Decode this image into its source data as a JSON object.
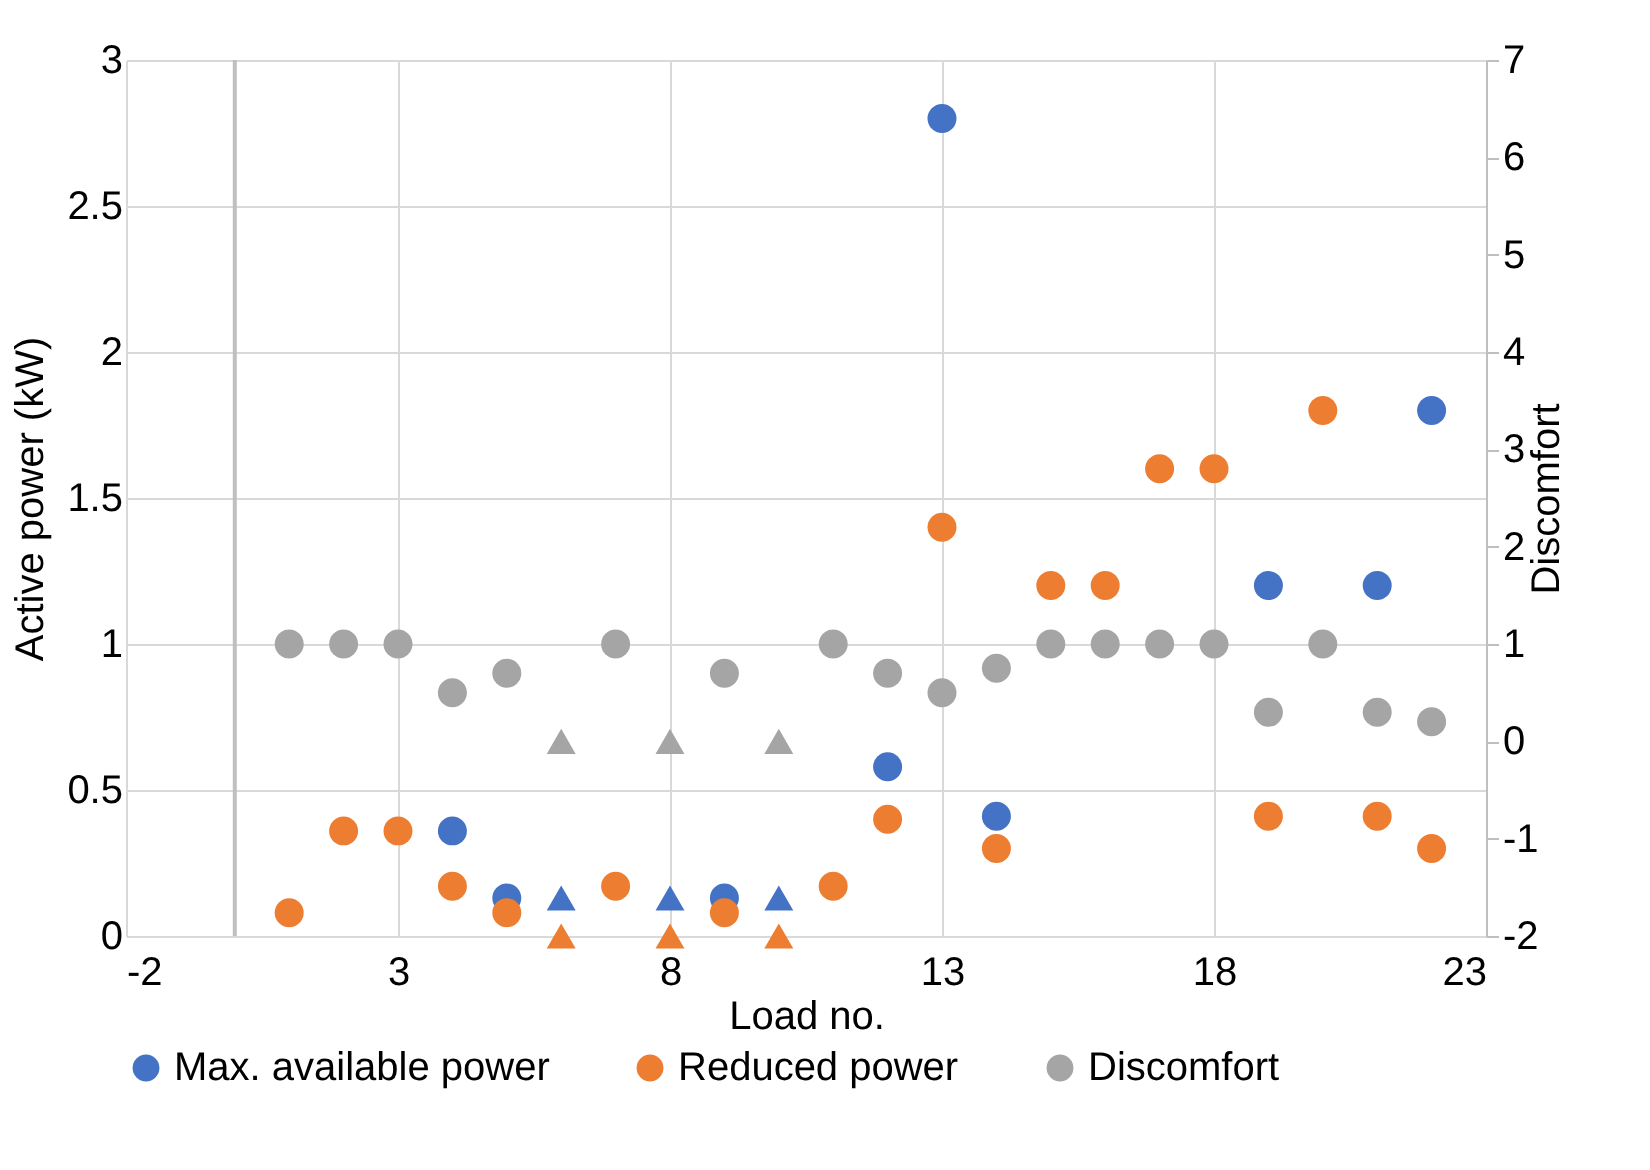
{
  "chart_data": {
    "type": "scatter",
    "xlabel": "Load no.",
    "ylabel": "Active  power (kW)",
    "y2label": "Discomfort",
    "xlim": [
      -2,
      23
    ],
    "xticks": [
      -2,
      3,
      8,
      13,
      18,
      23
    ],
    "ylim": [
      0,
      3
    ],
    "yticks": [
      0,
      0.5,
      1,
      1.5,
      2,
      2.5,
      3
    ],
    "y2lim": [
      -2,
      7
    ],
    "y2ticks": [
      -2,
      -1,
      0,
      1,
      2,
      3,
      4,
      5,
      6,
      7
    ],
    "grid": true,
    "legend": "bottom",
    "ref_lines": [
      {
        "axis": "x",
        "value": 0,
        "color": "#bfbfbf"
      }
    ],
    "series": [
      {
        "name": "Max. available power",
        "color": "#4472c4",
        "marker": "circle",
        "x": [
          4,
          5,
          9,
          12,
          13,
          14,
          19,
          21,
          22
        ],
        "values": [
          0.36,
          0.13,
          0.13,
          0.58,
          2.8,
          0.41,
          1.2,
          1.2,
          1.8
        ]
      },
      {
        "name": "Reduced power",
        "color": "#ed7d31",
        "marker": "circle",
        "x": [
          1,
          2,
          3,
          4,
          5,
          7,
          9,
          11,
          12,
          13,
          14,
          15,
          16,
          17,
          18,
          19,
          20,
          21,
          22
        ],
        "values": [
          0.08,
          0.36,
          0.36,
          0.17,
          0.08,
          0.17,
          0.08,
          0.17,
          0.4,
          1.4,
          0.3,
          1.2,
          1.2,
          1.6,
          1.6,
          0.41,
          1.8,
          0.41,
          0.3
        ]
      },
      {
        "name": "Discomfort",
        "color": "#a5a5a5",
        "marker": "circle",
        "axis": "y2",
        "x": [
          1,
          2,
          3,
          4,
          5,
          7,
          9,
          11,
          12,
          13,
          14,
          15,
          16,
          17,
          18,
          19,
          20,
          21,
          22
        ],
        "values": [
          1,
          1,
          1,
          0.5,
          0.7,
          1,
          0.7,
          1,
          0.7,
          0.5,
          0.75,
          1,
          1,
          1,
          1,
          0.3,
          1,
          0.3,
          0.2
        ]
      },
      {
        "color": "#4472c4",
        "marker": "triangle",
        "x": [
          6,
          8,
          10
        ],
        "values": [
          0.13,
          0.13,
          0.13
        ]
      },
      {
        "color": "#ed7d31",
        "marker": "triangle",
        "x": [
          6,
          8,
          10
        ],
        "values": [
          0,
          0,
          0
        ]
      },
      {
        "color": "#a5a5a5",
        "marker": "triangle",
        "axis": "y2",
        "x": [
          6,
          8,
          10
        ],
        "values": [
          0,
          0,
          0
        ]
      }
    ]
  }
}
